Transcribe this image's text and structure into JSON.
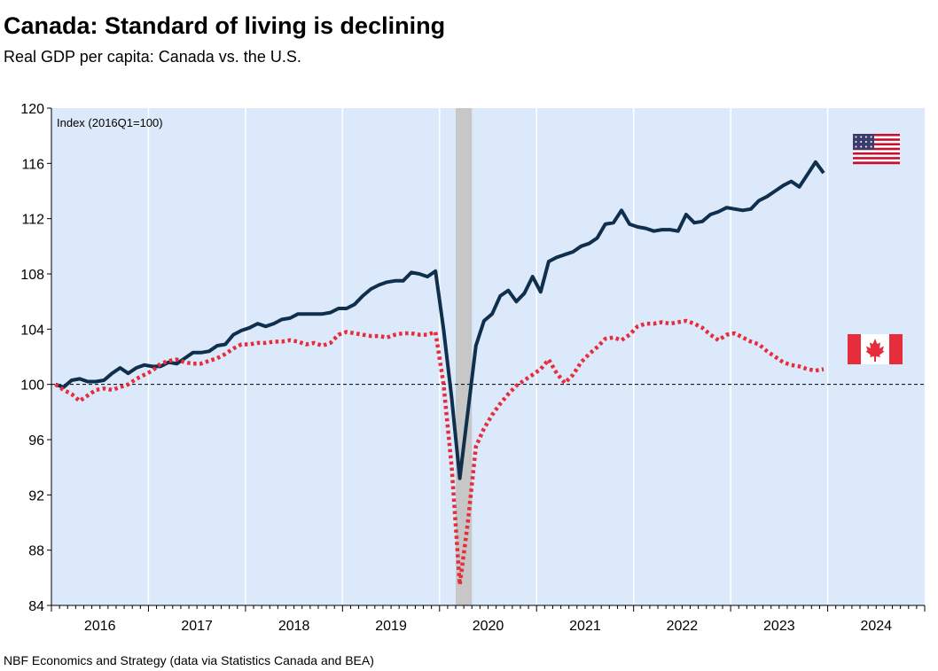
{
  "title": "Canada: Standard of living is declining",
  "subtitle": "Real GDP per capita: Canada vs. the U.S.",
  "source": "NBF Economics and Strategy (data via Statistics Canada and BEA)",
  "colors": {
    "plot_background": "#dce9fb",
    "us_line": "#0f2f4c",
    "canada_line": "#e52d3c",
    "recession_band": "#c7c7c7",
    "reference_line": "#000000"
  },
  "chart_data": {
    "type": "line",
    "annotation": "Index (2016Q1=100)",
    "ylim": [
      84,
      120
    ],
    "yticks": [
      84,
      88,
      92,
      96,
      100,
      104,
      108,
      112,
      116,
      120
    ],
    "xlim": [
      "2016-01",
      "2024-12"
    ],
    "year_labels": [
      "2016",
      "2017",
      "2018",
      "2019",
      "2020",
      "2021",
      "2022",
      "2023",
      "2024"
    ],
    "reference_value": 100,
    "grid": "vertical",
    "recession_shading": {
      "start": "2020-03",
      "end": "2020-04"
    },
    "legend": [
      {
        "series": "united-states",
        "icon": "us-flag-icon",
        "placement": "right"
      },
      {
        "series": "canada",
        "icon": "canada-flag-icon",
        "placement": "right"
      }
    ],
    "series": [
      {
        "id": "united-states",
        "style": "solid",
        "points": [
          [
            "2016-01",
            100.0
          ],
          [
            "2016-02",
            99.8
          ],
          [
            "2016-03",
            100.3
          ],
          [
            "2016-04",
            100.4
          ],
          [
            "2016-05",
            100.2
          ],
          [
            "2016-06",
            100.2
          ],
          [
            "2016-07",
            100.3
          ],
          [
            "2016-08",
            100.8
          ],
          [
            "2016-09",
            101.2
          ],
          [
            "2016-10",
            100.8
          ],
          [
            "2016-11",
            101.2
          ],
          [
            "2016-12",
            101.4
          ],
          [
            "2017-01",
            101.3
          ],
          [
            "2017-02",
            101.3
          ],
          [
            "2017-03",
            101.6
          ],
          [
            "2017-04",
            101.5
          ],
          [
            "2017-05",
            101.9
          ],
          [
            "2017-06",
            102.3
          ],
          [
            "2017-07",
            102.3
          ],
          [
            "2017-08",
            102.4
          ],
          [
            "2017-09",
            102.8
          ],
          [
            "2017-10",
            102.9
          ],
          [
            "2017-11",
            103.6
          ],
          [
            "2017-12",
            103.9
          ],
          [
            "2018-01",
            104.1
          ],
          [
            "2018-02",
            104.4
          ],
          [
            "2018-03",
            104.2
          ],
          [
            "2018-04",
            104.4
          ],
          [
            "2018-05",
            104.7
          ],
          [
            "2018-06",
            104.8
          ],
          [
            "2018-07",
            105.1
          ],
          [
            "2018-08",
            105.1
          ],
          [
            "2018-09",
            105.1
          ],
          [
            "2018-10",
            105.1
          ],
          [
            "2018-11",
            105.2
          ],
          [
            "2018-12",
            105.5
          ],
          [
            "2019-01",
            105.5
          ],
          [
            "2019-02",
            105.8
          ],
          [
            "2019-03",
            106.4
          ],
          [
            "2019-04",
            106.9
          ],
          [
            "2019-05",
            107.2
          ],
          [
            "2019-06",
            107.4
          ],
          [
            "2019-07",
            107.5
          ],
          [
            "2019-08",
            107.5
          ],
          [
            "2019-09",
            108.1
          ],
          [
            "2019-10",
            108.0
          ],
          [
            "2019-11",
            107.8
          ],
          [
            "2019-12",
            108.2
          ],
          [
            "2020-01",
            104.0
          ],
          [
            "2020-02",
            99.0
          ],
          [
            "2020-03",
            93.2
          ],
          [
            "2020-04",
            98.0
          ],
          [
            "2020-05",
            102.8
          ],
          [
            "2020-06",
            104.6
          ],
          [
            "2020-07",
            105.1
          ],
          [
            "2020-08",
            106.4
          ],
          [
            "2020-09",
            106.8
          ],
          [
            "2020-10",
            106.0
          ],
          [
            "2020-11",
            106.6
          ],
          [
            "2020-12",
            107.8
          ],
          [
            "2021-01",
            106.7
          ],
          [
            "2021-02",
            108.9
          ],
          [
            "2021-03",
            109.2
          ],
          [
            "2021-04",
            109.4
          ],
          [
            "2021-05",
            109.6
          ],
          [
            "2021-06",
            110.0
          ],
          [
            "2021-07",
            110.2
          ],
          [
            "2021-08",
            110.6
          ],
          [
            "2021-09",
            111.6
          ],
          [
            "2021-10",
            111.7
          ],
          [
            "2021-11",
            112.6
          ],
          [
            "2021-12",
            111.6
          ],
          [
            "2022-01",
            111.4
          ],
          [
            "2022-02",
            111.3
          ],
          [
            "2022-03",
            111.1
          ],
          [
            "2022-04",
            111.2
          ],
          [
            "2022-05",
            111.2
          ],
          [
            "2022-06",
            111.1
          ],
          [
            "2022-07",
            112.3
          ],
          [
            "2022-08",
            111.7
          ],
          [
            "2022-09",
            111.8
          ],
          [
            "2022-10",
            112.3
          ],
          [
            "2022-11",
            112.5
          ],
          [
            "2022-12",
            112.8
          ],
          [
            "2023-01",
            112.7
          ],
          [
            "2023-02",
            112.6
          ],
          [
            "2023-03",
            112.7
          ],
          [
            "2023-04",
            113.3
          ],
          [
            "2023-05",
            113.6
          ],
          [
            "2023-06",
            114.0
          ],
          [
            "2023-07",
            114.4
          ],
          [
            "2023-08",
            114.7
          ],
          [
            "2023-09",
            114.3
          ],
          [
            "2023-10",
            115.2
          ],
          [
            "2023-11",
            116.1
          ],
          [
            "2023-12",
            115.3
          ]
        ]
      },
      {
        "id": "canada",
        "style": "dotted",
        "points": [
          [
            "2016-01",
            100.0
          ],
          [
            "2016-02",
            99.6
          ],
          [
            "2016-03",
            99.3
          ],
          [
            "2016-04",
            98.8
          ],
          [
            "2016-05",
            99.2
          ],
          [
            "2016-06",
            99.6
          ],
          [
            "2016-07",
            99.7
          ],
          [
            "2016-08",
            99.6
          ],
          [
            "2016-09",
            99.8
          ],
          [
            "2016-10",
            100.0
          ],
          [
            "2016-11",
            100.4
          ],
          [
            "2016-12",
            100.7
          ],
          [
            "2017-01",
            101.0
          ],
          [
            "2017-02",
            101.5
          ],
          [
            "2017-03",
            101.7
          ],
          [
            "2017-04",
            101.8
          ],
          [
            "2017-05",
            101.6
          ],
          [
            "2017-06",
            101.5
          ],
          [
            "2017-07",
            101.5
          ],
          [
            "2017-08",
            101.7
          ],
          [
            "2017-09",
            101.9
          ],
          [
            "2017-10",
            102.2
          ],
          [
            "2017-11",
            102.6
          ],
          [
            "2017-12",
            102.9
          ],
          [
            "2018-01",
            102.9
          ],
          [
            "2018-02",
            103.0
          ],
          [
            "2018-03",
            103.0
          ],
          [
            "2018-04",
            103.1
          ],
          [
            "2018-05",
            103.1
          ],
          [
            "2018-06",
            103.2
          ],
          [
            "2018-07",
            103.1
          ],
          [
            "2018-08",
            102.9
          ],
          [
            "2018-09",
            103.0
          ],
          [
            "2018-10",
            102.8
          ],
          [
            "2018-11",
            103.0
          ],
          [
            "2018-12",
            103.6
          ],
          [
            "2019-01",
            103.8
          ],
          [
            "2019-02",
            103.7
          ],
          [
            "2019-03",
            103.6
          ],
          [
            "2019-04",
            103.5
          ],
          [
            "2019-05",
            103.5
          ],
          [
            "2019-06",
            103.4
          ],
          [
            "2019-07",
            103.6
          ],
          [
            "2019-08",
            103.7
          ],
          [
            "2019-09",
            103.7
          ],
          [
            "2019-10",
            103.6
          ],
          [
            "2019-11",
            103.6
          ],
          [
            "2019-12",
            103.8
          ],
          [
            "2020-01",
            100.0
          ],
          [
            "2020-02",
            94.0
          ],
          [
            "2020-03",
            85.5
          ],
          [
            "2020-04",
            90.0
          ],
          [
            "2020-05",
            95.5
          ],
          [
            "2020-06",
            96.8
          ],
          [
            "2020-07",
            97.8
          ],
          [
            "2020-08",
            98.6
          ],
          [
            "2020-09",
            99.3
          ],
          [
            "2020-10",
            99.9
          ],
          [
            "2020-11",
            100.3
          ],
          [
            "2020-12",
            100.7
          ],
          [
            "2021-01",
            101.1
          ],
          [
            "2021-02",
            101.8
          ],
          [
            "2021-03",
            100.8
          ],
          [
            "2021-04",
            100.1
          ],
          [
            "2021-05",
            100.7
          ],
          [
            "2021-06",
            101.6
          ],
          [
            "2021-07",
            102.2
          ],
          [
            "2021-08",
            102.7
          ],
          [
            "2021-09",
            103.3
          ],
          [
            "2021-10",
            103.4
          ],
          [
            "2021-11",
            103.2
          ],
          [
            "2021-12",
            103.6
          ],
          [
            "2022-01",
            104.2
          ],
          [
            "2022-02",
            104.4
          ],
          [
            "2022-03",
            104.4
          ],
          [
            "2022-04",
            104.5
          ],
          [
            "2022-05",
            104.4
          ],
          [
            "2022-06",
            104.5
          ],
          [
            "2022-07",
            104.6
          ],
          [
            "2022-08",
            104.4
          ],
          [
            "2022-09",
            104.1
          ],
          [
            "2022-10",
            103.6
          ],
          [
            "2022-11",
            103.2
          ],
          [
            "2022-12",
            103.6
          ],
          [
            "2023-01",
            103.7
          ],
          [
            "2023-02",
            103.4
          ],
          [
            "2023-03",
            103.1
          ],
          [
            "2023-04",
            102.9
          ],
          [
            "2023-05",
            102.4
          ],
          [
            "2023-06",
            102.0
          ],
          [
            "2023-07",
            101.6
          ],
          [
            "2023-08",
            101.4
          ],
          [
            "2023-09",
            101.3
          ],
          [
            "2023-10",
            101.1
          ],
          [
            "2023-11",
            101.0
          ],
          [
            "2023-12",
            101.1
          ]
        ]
      }
    ]
  }
}
